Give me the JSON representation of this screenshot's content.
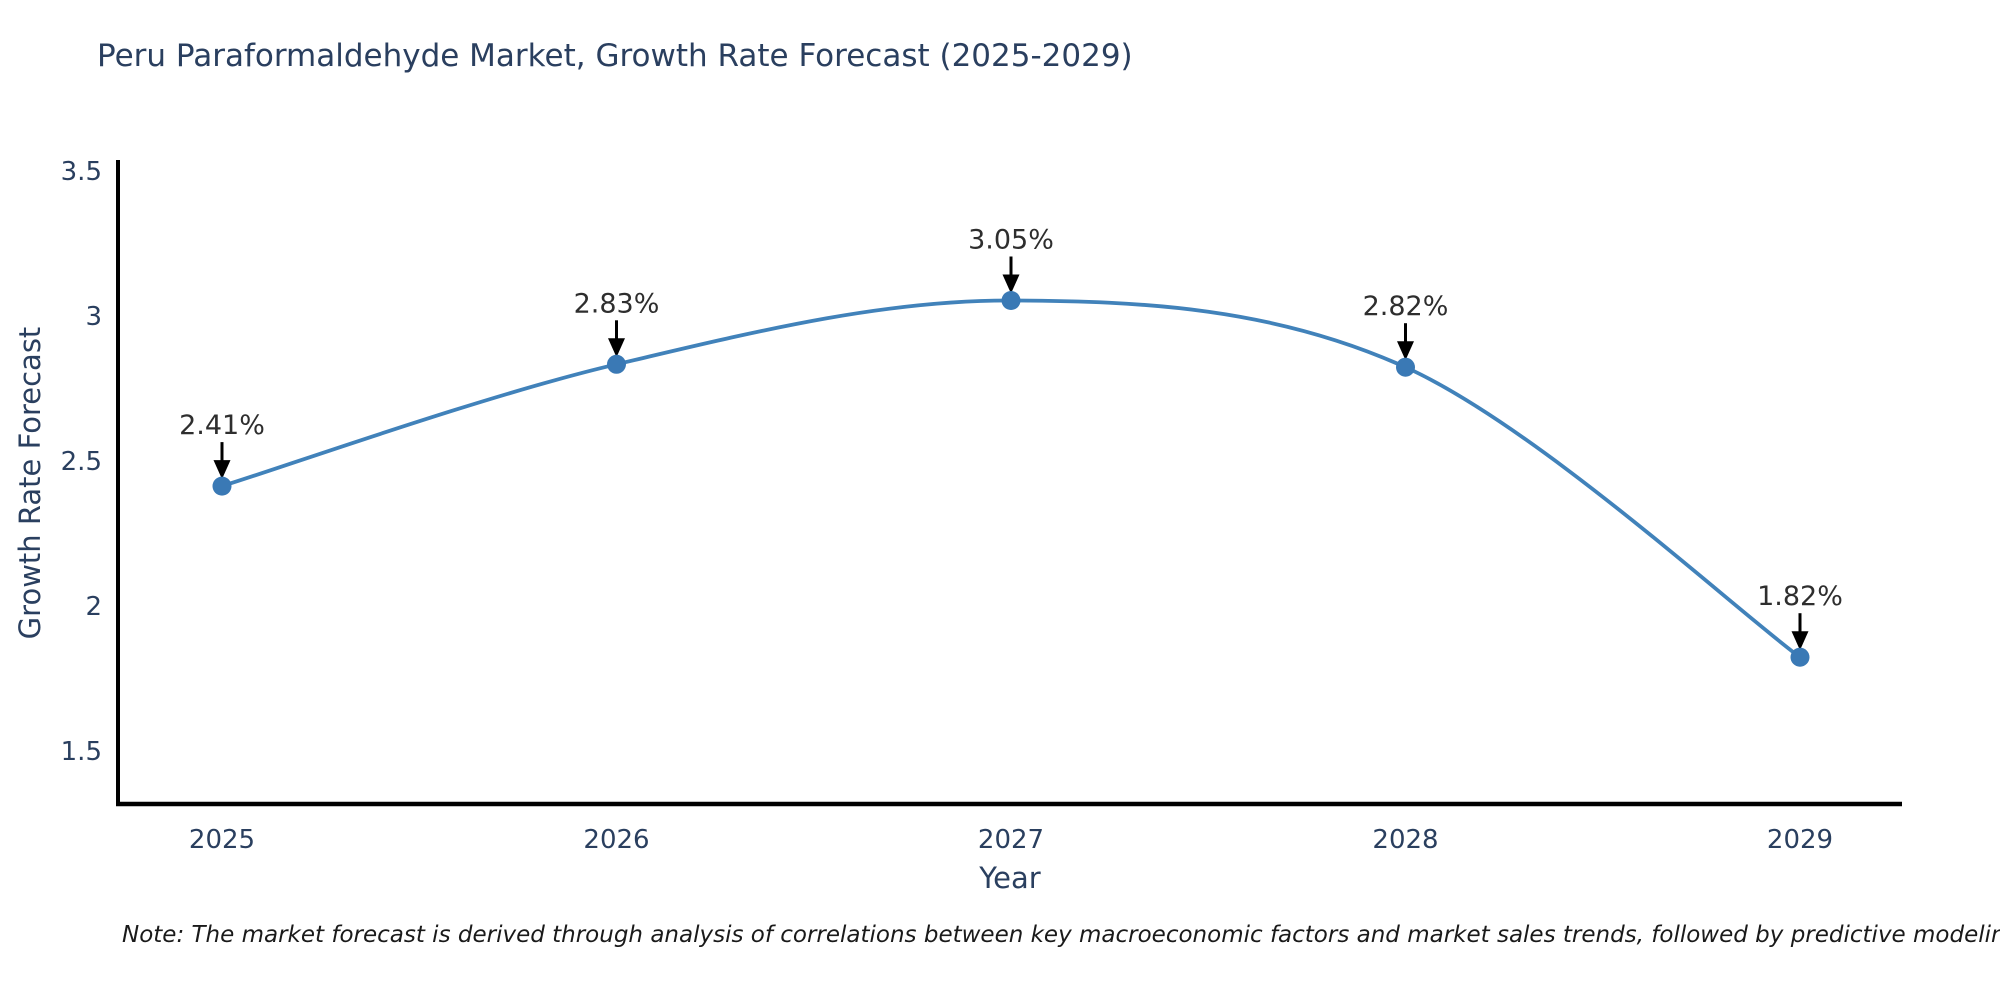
{
  "title": "Peru Paraformaldehyde Market, Growth Rate Forecast (2025-2029)",
  "note": "Note: The market forecast is derived through analysis of correlations between key macroeconomic factors and market sales trends, followed by predictive modeling to project future sales",
  "chart_data": {
    "type": "line",
    "line_shape": "spline",
    "title": "Peru Paraformaldehyde Market, Growth Rate Forecast (2025-2029)",
    "xlabel": "Year",
    "ylabel": "Growth Rate Forecast",
    "x": [
      2025,
      2026,
      2027,
      2028,
      2029
    ],
    "values": [
      2.41,
      2.83,
      3.05,
      2.82,
      1.82
    ],
    "point_labels": [
      "2.41%",
      "2.83%",
      "3.05%",
      "2.82%",
      "1.82%"
    ],
    "xtick_labels": [
      "2025",
      "2026",
      "2027",
      "2028",
      "2029"
    ],
    "ytick_values": [
      3.5,
      3,
      2.5,
      2,
      1.5
    ],
    "ytick_labels": [
      "3.5",
      "3",
      "2.5",
      "2",
      "1.5"
    ],
    "ylim": [
      1.33,
      3.53
    ],
    "grid": false,
    "legend": "none",
    "colors": {
      "line": "#4182ba",
      "marker": "#3a79b5",
      "axis": "#000000",
      "tick_text": "#2a3f5f",
      "annotation_text": "#2e2e2e",
      "annotation_arrow": "#000000"
    }
  }
}
